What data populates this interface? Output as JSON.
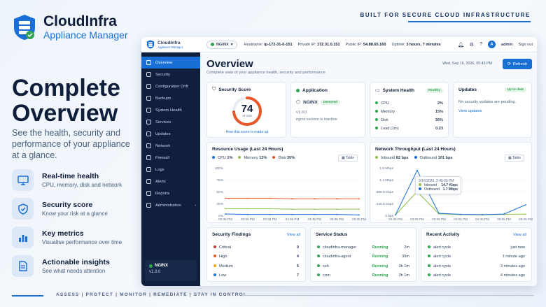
{
  "brand": {
    "name": "CloudInfra",
    "sub": "Appliance Manager"
  },
  "tagline": "BUILT FOR SECURE CLOUD INFRASTRUCTURE",
  "hero": {
    "line1": "Complete",
    "line2": "Overview",
    "desc": "See the health, security and performance of your appliance at a glance."
  },
  "features": [
    {
      "title": "Real-time health",
      "desc": "CPU, memory, disk and network",
      "icon": "monitor-icon"
    },
    {
      "title": "Security score",
      "desc": "Know your risk at a glance",
      "icon": "shield-check-icon"
    },
    {
      "title": "Key metrics",
      "desc": "Visualise performance over time",
      "icon": "bar-chart-icon"
    },
    {
      "title": "Actionable insights",
      "desc": "See what needs attention",
      "icon": "document-icon"
    }
  ],
  "bottom_nav": "ASSESS  |  PROTECT  |  MONITOR  |  REMEDIATE  |  STAY IN CONTROL",
  "topbar": {
    "app_name": "CloudInfra",
    "app_sub": "Appliance Manager",
    "service": "NGINX",
    "hostname_label": "Hostname:",
    "hostname": "ip-172-31-0-151",
    "private_label": "Private IP:",
    "private_ip": "172.31.0.151",
    "public_label": "Public IP:",
    "public_ip": "54.88.65.160",
    "uptime_label": "Uptime:",
    "uptime": "3 hours, 7 minutes",
    "user": "admin",
    "avatar": "A",
    "signout": "Sign out"
  },
  "sidebar": {
    "items": [
      "Overview",
      "Security",
      "Configuration Drift",
      "Backups",
      "System Health",
      "Services",
      "Updates",
      "Network",
      "Firewall",
      "Logs",
      "Alerts",
      "Reports",
      "Administration"
    ],
    "footer_service": "NGINX",
    "footer_version": "v1.0.0"
  },
  "overview": {
    "title": "Overview",
    "subtitle": "Complete view of your appliance health, security and performance",
    "date": "Wed, Sep 16, 2026, 05:43 PM",
    "refresh": "Refresh"
  },
  "security_score": {
    "title": "Security Score",
    "score": "74",
    "of": "of 100",
    "value": 74,
    "link": "How this score is made up"
  },
  "application": {
    "title": "Application",
    "name": "NGINX",
    "badge": "Detected",
    "version": "v1.0.0",
    "status": "nginx.service is inactive"
  },
  "system_health": {
    "title": "System Health",
    "badge": "Healthy",
    "rows": [
      {
        "label": "CPU",
        "value": "2%"
      },
      {
        "label": "Memory",
        "value": "15%"
      },
      {
        "label": "Disk",
        "value": "36%"
      },
      {
        "label": "Load (1m)",
        "value": "0.23"
      }
    ]
  },
  "updates": {
    "title": "Updates",
    "badge": "Up to date",
    "text": "No security updates are pending.",
    "link": "View updates"
  },
  "colors": {
    "primary": "#1a6fd6",
    "cpu": "#1a6fd6",
    "memory": "#8bc34a",
    "disk": "#e8572a",
    "inbound": "#8bc34a",
    "outbound": "#1a6fd6"
  },
  "resource_usage": {
    "title": "Resource Usage (Last 24 Hours)",
    "table": "Table",
    "legend": [
      {
        "name": "CPU",
        "value": "1%"
      },
      {
        "name": "Memory",
        "value": "13%"
      },
      {
        "name": "Disk",
        "value": "35%"
      }
    ],
    "yticks": [
      "100%",
      "75%",
      "50%",
      "25%",
      "0%"
    ],
    "xticks": [
      "02:35 PM",
      "03:05 PM",
      "03:35 PM",
      "04:05 PM",
      "04:35 PM",
      "05:05 PM",
      "05:35 PM"
    ]
  },
  "throughput": {
    "title": "Network Throughput (Last 24 Hours)",
    "table": "Table",
    "legend": [
      {
        "name": "Inbound",
        "value": "82 bps"
      },
      {
        "name": "Outbound",
        "value": "101 bps"
      }
    ],
    "yticks": [
      "1.8 Mbps",
      "1.3 Mbps",
      "880.0 Kbps",
      "440.0 Kbps",
      "0 bps"
    ],
    "xticks": [
      "02:35 PM",
      "03:05 PM",
      "03:35 PM",
      "04:05 PM",
      "04:35 PM",
      "05:05 PM",
      "05:35 PM"
    ],
    "tooltip": {
      "time": "9/16/2026, 2:45:00 PM",
      "inbound_label": "Inbound",
      "inbound": "14.7 Kbps",
      "outbound_label": "Outbound",
      "outbound": "1.7 Mbps"
    }
  },
  "findings": {
    "title": "Security Findings",
    "link": "View all",
    "rows": [
      {
        "label": "Critical",
        "count": "0",
        "color": "#c0392b"
      },
      {
        "label": "High",
        "count": "4",
        "color": "#e8572a"
      },
      {
        "label": "Medium",
        "count": "5",
        "color": "#f0a500"
      },
      {
        "label": "Low",
        "count": "7",
        "color": "#1a6fd6"
      }
    ]
  },
  "service_status": {
    "title": "Service Status",
    "rows": [
      {
        "name": "cloudinfra-manager",
        "status": "Running",
        "time": "2m"
      },
      {
        "name": "cloudinfra-agent",
        "status": "Running",
        "time": "39m"
      },
      {
        "name": "ssh",
        "status": "Running",
        "time": "3h 1m"
      },
      {
        "name": "cron",
        "status": "Running",
        "time": "3h 1m"
      }
    ]
  },
  "activity": {
    "title": "Recent Activity",
    "link": "View all",
    "rows": [
      {
        "name": "alert cycle",
        "time": "just now"
      },
      {
        "name": "alert cycle",
        "time": "1 minute ago"
      },
      {
        "name": "alert cycle",
        "time": "3 minutes ago"
      },
      {
        "name": "alert cycle",
        "time": "4 minutes ago"
      }
    ]
  },
  "chart_data": [
    {
      "type": "line",
      "title": "Resource Usage (Last 24 Hours)",
      "ylim": [
        0,
        100
      ],
      "x": [
        "02:35 PM",
        "03:05 PM",
        "03:35 PM",
        "04:05 PM",
        "04:35 PM",
        "05:05 PM",
        "05:35 PM"
      ],
      "series": [
        {
          "name": "CPU",
          "values": [
            3,
            2,
            2,
            2,
            2,
            2,
            1
          ]
        },
        {
          "name": "Memory",
          "values": [
            14,
            14,
            14,
            13,
            13,
            13,
            13
          ]
        },
        {
          "name": "Disk",
          "values": [
            36,
            36,
            36,
            35,
            35,
            35,
            35
          ]
        }
      ]
    },
    {
      "type": "line",
      "title": "Network Throughput (Last 24 Hours)",
      "ylim": [
        0,
        1800
      ],
      "x": [
        "02:35 PM",
        "03:05 PM",
        "03:35 PM",
        "04:05 PM",
        "04:35 PM",
        "05:05 PM",
        "05:35 PM"
      ],
      "series": [
        {
          "name": "Inbound",
          "values": [
            20,
            900,
            60,
            30,
            20,
            40,
            50
          ]
        },
        {
          "name": "Outbound",
          "values": [
            20,
            1700,
            80,
            40,
            30,
            50,
            400
          ]
        }
      ]
    }
  ]
}
